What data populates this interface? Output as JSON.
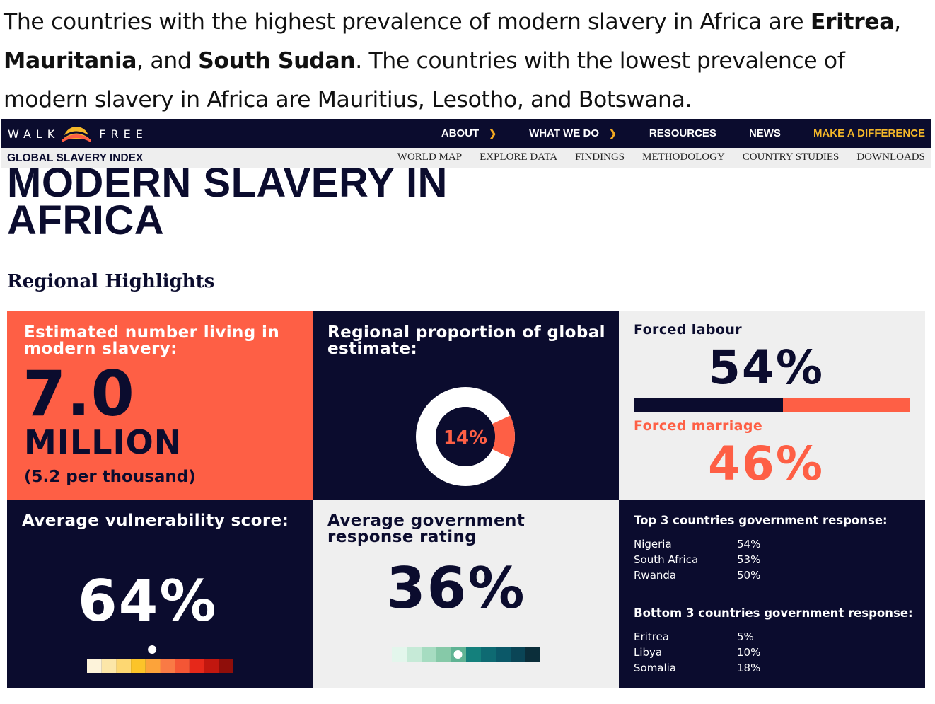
{
  "caption": {
    "p1": "The countries with the highest prevalence of modern slavery in Africa are ",
    "b1": "Eritrea",
    "p2": ", ",
    "b2": "Mauritania",
    "p3": ", and ",
    "b3": "South Sudan",
    "p4": ". The countries with the lowest prevalence of modern slavery in Africa are Mauritius, Lesotho, and Botswana."
  },
  "nav": {
    "logo_left": "WALK",
    "logo_right": "FREE",
    "items": [
      "ABOUT",
      "WHAT WE DO",
      "RESOURCES",
      "NEWS",
      "MAKE A DIFFERENCE"
    ],
    "accent_color": "#f5b829"
  },
  "subnav": {
    "brand": "GLOBAL SLAVERY INDEX",
    "links": [
      "WORLD MAP",
      "EXPLORE DATA",
      "FINDINGS",
      "METHODOLOGY",
      "COUNTRY STUDIES",
      "DOWNLOADS"
    ]
  },
  "page": {
    "title_line1": "MODERN SLAVERY IN",
    "title_line2": "AFRICA",
    "section": "Regional Highlights"
  },
  "tiles": {
    "estimate": {
      "heading": "Estimated number living in modern slavery:",
      "number": "7.0",
      "unit": "MILLION",
      "per": "(5.2 per thousand)"
    },
    "proportion": {
      "heading": "Regional proportion of global estimate:",
      "label": "14%",
      "value": 14
    },
    "forms": {
      "labour_label": "Forced labour",
      "labour_pct": "54%",
      "labour_value": 54,
      "marriage_label": "Forced marriage",
      "marriage_pct": "46%"
    },
    "vulnerability": {
      "heading": "Average vulnerability score:",
      "pct": "64%"
    },
    "government": {
      "heading": "Average government response rating",
      "pct": "36%"
    },
    "responses": {
      "top_heading": "Top 3 countries government response:",
      "top": [
        {
          "country": "Nigeria",
          "value": "54%"
        },
        {
          "country": "South Africa",
          "value": "53%"
        },
        {
          "country": "Rwanda",
          "value": "50%"
        }
      ],
      "bottom_heading": "Bottom 3 countries government response:",
      "bottom": [
        {
          "country": "Eritrea",
          "value": "5%"
        },
        {
          "country": "Libya",
          "value": "10%"
        },
        {
          "country": "Somalia",
          "value": "18%"
        }
      ]
    }
  },
  "colors": {
    "navy": "#0b0c2e",
    "coral": "#fe5f45",
    "light": "#efefef",
    "vulnerability_scale": [
      "#fdf3da",
      "#fce6a8",
      "#fdd772",
      "#fcc429",
      "#fca33a",
      "#f97a45",
      "#f45635",
      "#e6281a",
      "#c2170f",
      "#8f0e0a"
    ],
    "government_scale": [
      "#e3f6ec",
      "#c6ead7",
      "#a6dcc1",
      "#86c9a8",
      "#5fb394",
      "#14807c",
      "#0e6a72",
      "#0b5868",
      "#0a4556",
      "#0b2e3a"
    ]
  },
  "indicators": {
    "vulnerability_marker_index": 4,
    "government_marker_index": 4
  }
}
